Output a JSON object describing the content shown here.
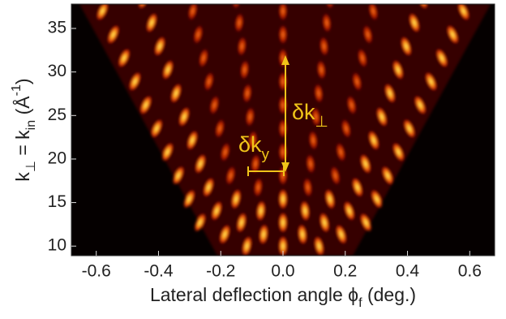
{
  "chart_data": {
    "type": "heatmap",
    "xlabel": [
      "Lateral deflection angle ϕ",
      "f",
      " (deg.)"
    ],
    "ylabel": [
      "k",
      "⊥",
      " = k",
      "in",
      " (Å",
      "-1",
      ")"
    ],
    "annotations": [
      [
        "δk",
        "⊥"
      ],
      [
        "δk",
        "y"
      ]
    ],
    "xlim": [
      -0.68,
      0.68
    ],
    "xticks": [
      -0.6,
      -0.4,
      -0.2,
      {
        "value": 0,
        "label": "0.0"
      },
      0.2,
      0.4,
      0.6
    ],
    "ylim": [
      8.9,
      37.8
    ],
    "yticks": [
      10,
      15,
      20,
      25,
      30,
      35
    ]
  }
}
